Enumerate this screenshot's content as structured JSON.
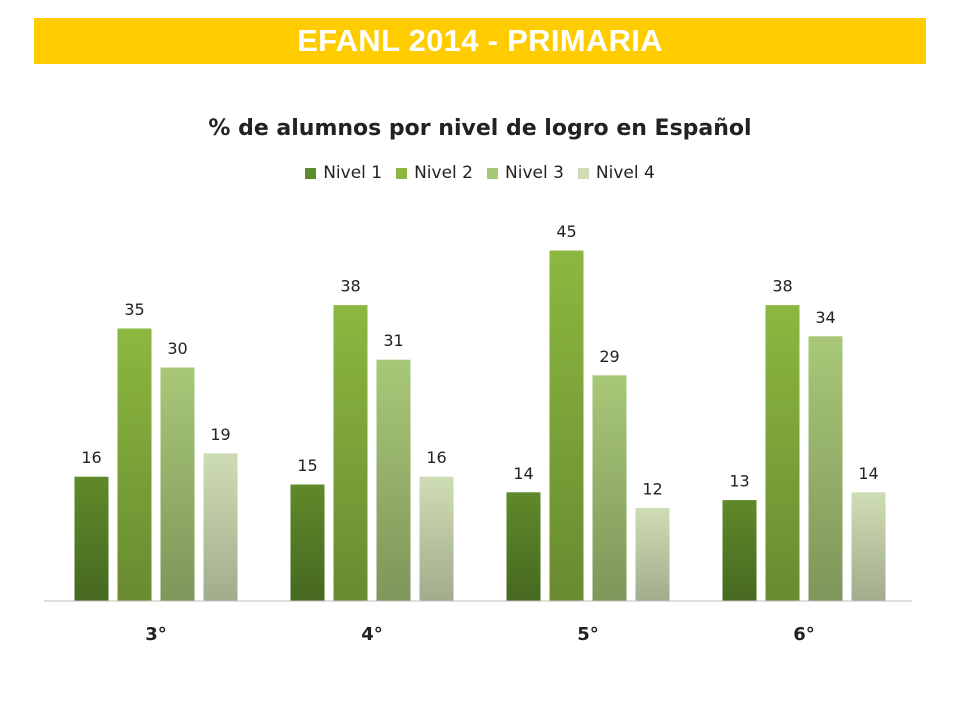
{
  "banner": {
    "title": "EFANL 2014 - PRIMARIA"
  },
  "chart_data": {
    "type": "bar",
    "title": "% de alumnos por nivel de logro en Español",
    "xlabel": "",
    "ylabel": "",
    "categories": [
      "3°",
      "4°",
      "5°",
      "6°"
    ],
    "series": [
      {
        "name": "Nivel 1",
        "values": [
          16,
          15,
          14,
          13
        ],
        "color": "#5f8a2a"
      },
      {
        "name": "Nivel 2",
        "values": [
          35,
          38,
          45,
          38
        ],
        "color": "#8cb840"
      },
      {
        "name": "Nivel 3",
        "values": [
          30,
          31,
          29,
          34
        ],
        "color": "#a8c878"
      },
      {
        "name": "Nivel 4",
        "values": [
          19,
          16,
          12,
          14
        ],
        "color": "#cfddb4"
      }
    ],
    "ylim": [
      0,
      45
    ],
    "grid": false,
    "legend_position": "top"
  }
}
